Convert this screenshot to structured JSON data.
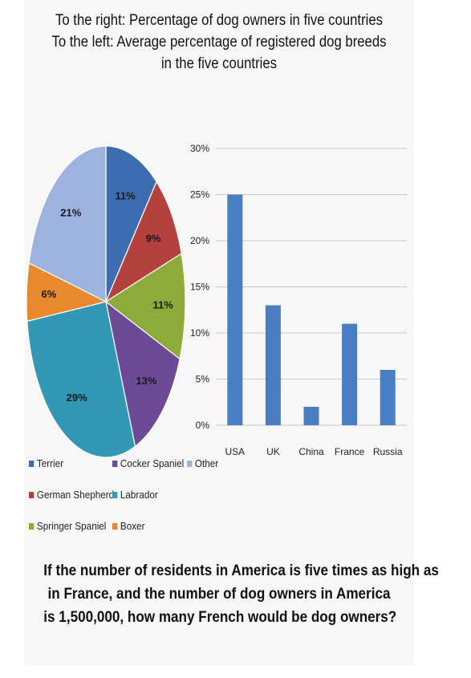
{
  "title_lines": [
    "To the right: Percentage of dog owners in five countries",
    "To the left: Average percentage of registered dog breeds",
    "in the five countries"
  ],
  "question_lines": [
    "If the number of residents in America is five times as high as",
    "in France, and the number of dog owners in America",
    "is 1,500,000, how many French would be dog owners?"
  ],
  "chart_data": [
    {
      "type": "pie",
      "title": "",
      "slices": [
        {
          "name": "Terrier",
          "value": 11,
          "label": "11%",
          "color": "#3d6db0"
        },
        {
          "name": "German Shepherd",
          "value": 9,
          "label": "9%",
          "color": "#b5413e"
        },
        {
          "name": "Springer Spaniel",
          "value": 11,
          "label": "11%",
          "color": "#8cac3a"
        },
        {
          "name": "Cocker Spaniel",
          "value": 13,
          "label": "13%",
          "color": "#6c4a96"
        },
        {
          "name": "Labrador",
          "value": 29,
          "label": "29%",
          "color": "#3199b4"
        },
        {
          "name": "Boxer",
          "value": 6,
          "label": "6%",
          "color": "#e8892f"
        },
        {
          "name": "Other",
          "value": 21,
          "label": "21%",
          "color": "#9db3de"
        }
      ],
      "legend": [
        [
          "Terrier",
          "Cocker Spaniel",
          "Other"
        ],
        [
          "German Shepherd",
          "Labrador"
        ],
        [
          "Springer Spaniel",
          "Boxer"
        ]
      ],
      "legend_placement": "bottom"
    },
    {
      "type": "bar",
      "title": "",
      "categories": [
        "USA",
        "UK",
        "China",
        "France",
        "Russia"
      ],
      "values": [
        25,
        13,
        2,
        11,
        6
      ],
      "ylim": [
        0,
        30
      ],
      "yticks": [
        "0%",
        "5%",
        "10%",
        "15%",
        "20%",
        "25%",
        "30%"
      ],
      "ytick_values": [
        0,
        5,
        10,
        15,
        20,
        25,
        30
      ],
      "grid": true,
      "bar_color": "#4a7ec4"
    }
  ]
}
